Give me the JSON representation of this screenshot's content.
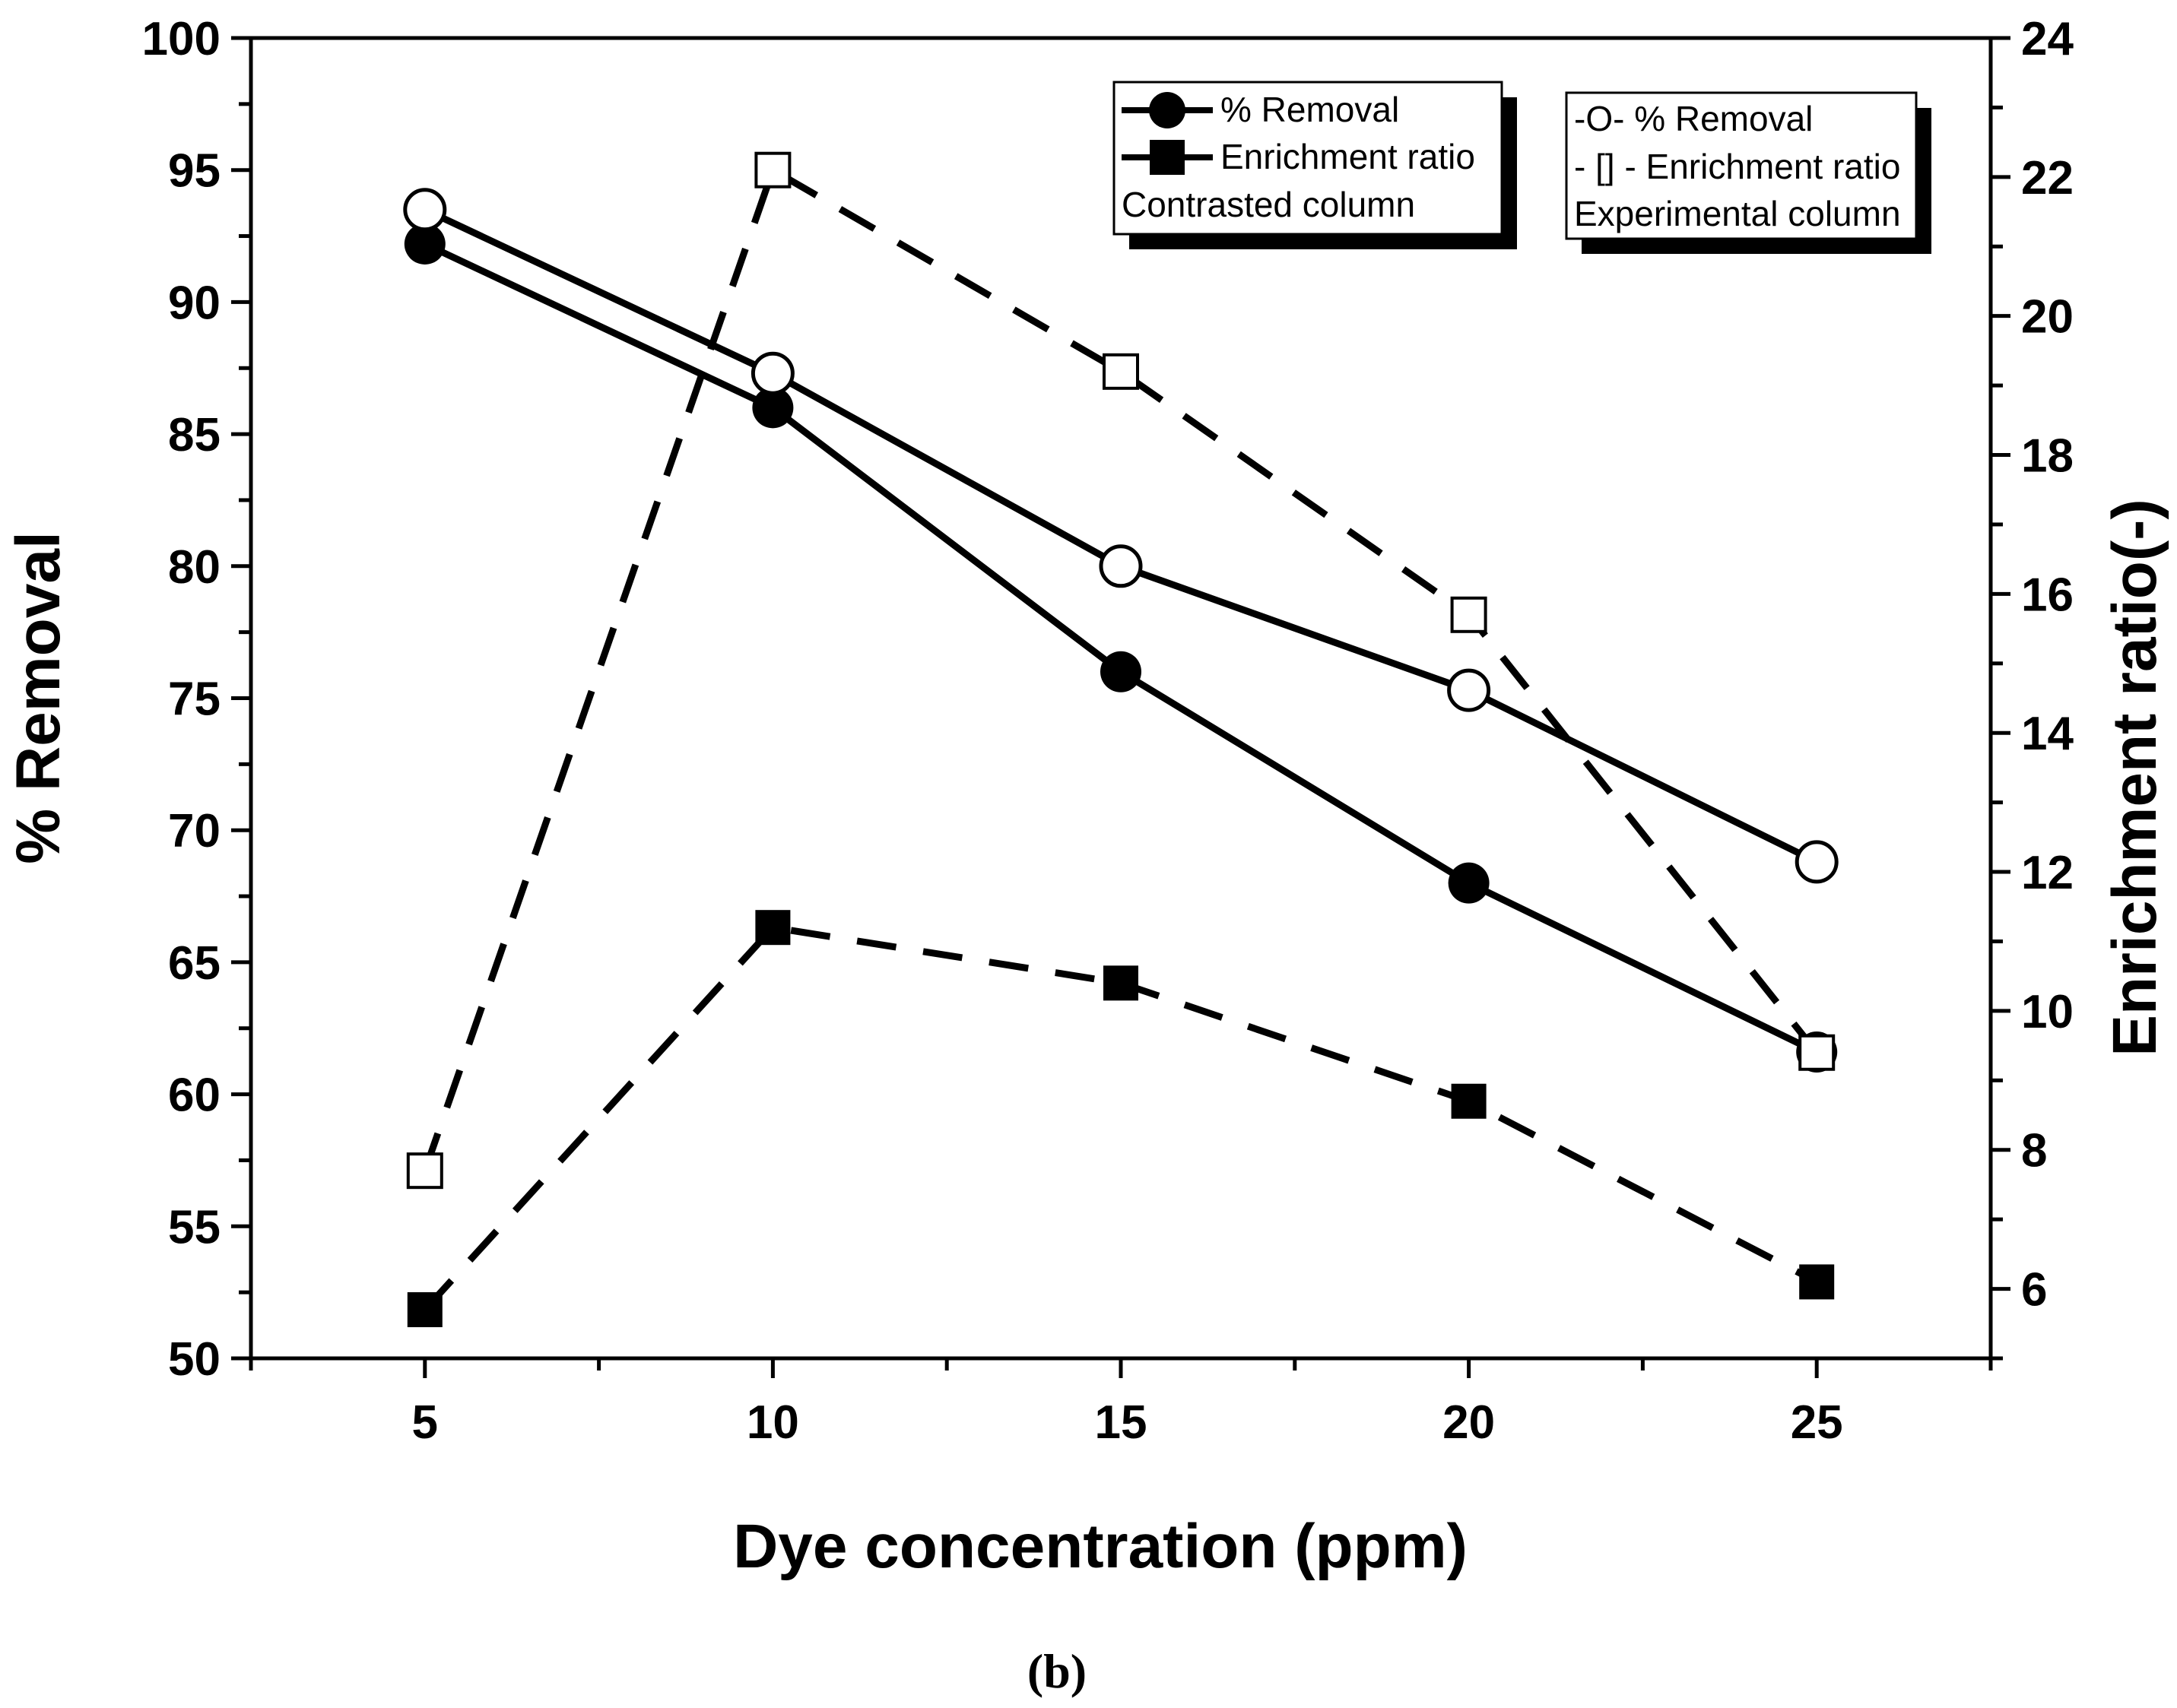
{
  "chart_data": {
    "type": "line",
    "title": "",
    "panel_label": "(b)",
    "xlabel": "Dye concentration (ppm)",
    "ylabel": "% Removal",
    "y2label": "Enrichment ratio(-)",
    "xlim": [
      2.5,
      27.5
    ],
    "ylim": [
      50,
      100
    ],
    "y2lim": [
      5,
      24
    ],
    "x_ticks": [
      5,
      10,
      15,
      20,
      25
    ],
    "y_ticks": [
      50,
      55,
      60,
      65,
      70,
      75,
      80,
      85,
      90,
      95,
      100
    ],
    "y2_ticks": [
      6,
      8,
      10,
      12,
      14,
      16,
      18,
      20,
      22,
      24
    ],
    "x": [
      5,
      10,
      15,
      20,
      25
    ],
    "series": [
      {
        "name": "% Removal",
        "group": "Contrasted column",
        "axis": "left",
        "marker": "filled-circle",
        "line": "solid",
        "values": [
          92.2,
          86.0,
          76.0,
          68.0,
          61.6
        ]
      },
      {
        "name": "Enrichment ratio",
        "group": "Contrasted column",
        "axis": "right",
        "marker": "filled-square",
        "line": "dashed",
        "values": [
          5.7,
          11.2,
          10.4,
          8.7,
          6.1
        ]
      },
      {
        "name": "% Removal",
        "group": "Experimental column",
        "axis": "left",
        "marker": "open-circle",
        "line": "solid",
        "values": [
          93.5,
          87.3,
          80.0,
          75.3,
          68.8
        ]
      },
      {
        "name": "Enrichment ratio",
        "group": "Experimental column",
        "axis": "right",
        "marker": "open-square",
        "line": "dashed",
        "values": [
          7.7,
          22.1,
          19.2,
          15.7,
          9.4
        ]
      }
    ],
    "legends": [
      {
        "position": "top-center",
        "entries": [
          "% Removal",
          "Enrichment ratio"
        ],
        "caption": "Contrasted column"
      },
      {
        "position": "top-right",
        "entries": [
          "-O-  % Removal",
          "- [] - Enrichment ratio"
        ],
        "caption": "Experimental column"
      }
    ]
  }
}
